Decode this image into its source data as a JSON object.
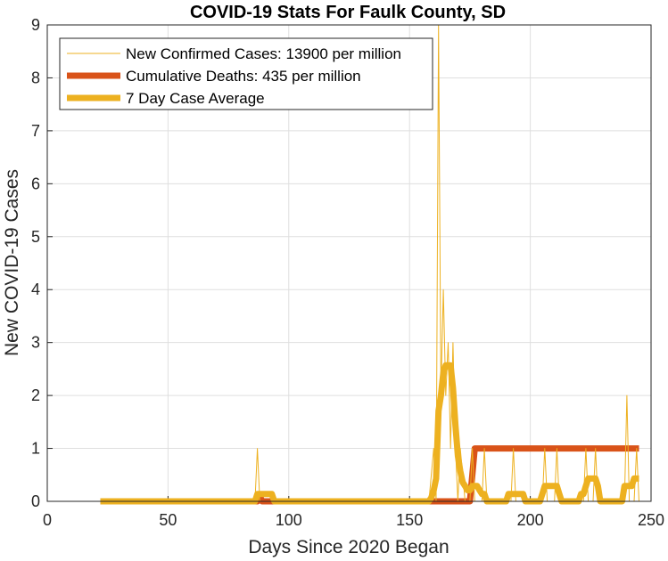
{
  "chart_data": {
    "type": "line",
    "title": "COVID-19 Stats For Faulk County, SD",
    "xlabel": "Days Since 2020 Began",
    "ylabel": "New COVID-19 Cases",
    "xlim": [
      0,
      250
    ],
    "ylim": [
      0,
      9
    ],
    "xticks": [
      "0",
      "50",
      "100",
      "150",
      "200",
      "250"
    ],
    "yticks": [
      "0",
      "1",
      "2",
      "3",
      "4",
      "5",
      "6",
      "7",
      "8",
      "9"
    ],
    "grid": true,
    "legend_position": "top-left",
    "series": [
      {
        "name": "New Confirmed Cases: 13900 per million",
        "color": "#EDB120",
        "style": "thin",
        "points": [
          [
            22,
            0
          ],
          [
            86,
            0
          ],
          [
            87,
            1
          ],
          [
            88,
            0
          ],
          [
            158,
            0
          ],
          [
            159,
            0.5
          ],
          [
            160,
            1
          ],
          [
            161,
            0
          ],
          [
            162,
            9
          ],
          [
            163,
            2
          ],
          [
            164,
            4
          ],
          [
            165,
            2
          ],
          [
            166,
            3
          ],
          [
            167,
            1
          ],
          [
            168,
            3
          ],
          [
            169,
            1
          ],
          [
            170,
            0
          ],
          [
            171,
            1
          ],
          [
            172,
            0.5
          ],
          [
            173,
            0
          ],
          [
            174,
            0
          ],
          [
            175,
            0
          ],
          [
            176,
            1
          ],
          [
            177,
            0
          ],
          [
            178,
            0
          ],
          [
            180,
            0
          ],
          [
            181,
            1
          ],
          [
            182,
            0
          ],
          [
            192,
            0
          ],
          [
            193,
            1
          ],
          [
            194,
            0
          ],
          [
            205,
            0
          ],
          [
            206,
            1
          ],
          [
            207,
            0
          ],
          [
            210,
            0
          ],
          [
            211,
            1
          ],
          [
            212,
            0
          ],
          [
            222,
            0
          ],
          [
            223,
            1
          ],
          [
            224,
            0
          ],
          [
            226,
            0
          ],
          [
            227,
            1
          ],
          [
            228,
            0
          ],
          [
            239,
            0
          ],
          [
            240,
            2
          ],
          [
            241,
            0
          ],
          [
            243,
            0
          ],
          [
            244,
            1
          ],
          [
            245,
            0
          ]
        ]
      },
      {
        "name": "Cumulative Deaths: 435 per million",
        "color": "#D95319",
        "style": "thick",
        "points": [
          [
            22,
            0
          ],
          [
            87,
            0
          ],
          [
            88,
            0.1
          ],
          [
            89,
            0
          ],
          [
            175,
            0
          ],
          [
            177,
            1
          ],
          [
            245,
            1
          ]
        ]
      },
      {
        "name": "7 Day Case Average",
        "color": "#EDB120",
        "style": "thick",
        "points": [
          [
            22,
            0
          ],
          [
            86,
            0
          ],
          [
            87,
            0.14
          ],
          [
            93,
            0.14
          ],
          [
            94,
            0
          ],
          [
            158,
            0
          ],
          [
            159,
            0.07
          ],
          [
            160,
            0.21
          ],
          [
            161,
            0.43
          ],
          [
            162,
            1.71
          ],
          [
            163,
            2.0
          ],
          [
            164,
            2.43
          ],
          [
            165,
            2.57
          ],
          [
            166,
            2.57
          ],
          [
            167,
            2.57
          ],
          [
            168,
            2.14
          ],
          [
            169,
            1.43
          ],
          [
            170,
            0.86
          ],
          [
            171,
            0.57
          ],
          [
            172,
            0.36
          ],
          [
            173,
            0.29
          ],
          [
            174,
            0.21
          ],
          [
            175,
            0.21
          ],
          [
            176,
            0.29
          ],
          [
            177,
            0.29
          ],
          [
            178,
            0.29
          ],
          [
            179,
            0.21
          ],
          [
            180,
            0.14
          ],
          [
            181,
            0.14
          ],
          [
            182,
            0.0
          ],
          [
            190,
            0
          ],
          [
            191,
            0.14
          ],
          [
            197,
            0.14
          ],
          [
            198,
            0
          ],
          [
            204,
            0
          ],
          [
            205,
            0.14
          ],
          [
            206,
            0.29
          ],
          [
            211,
            0.29
          ],
          [
            212,
            0.14
          ],
          [
            213,
            0
          ],
          [
            220,
            0
          ],
          [
            221,
            0.14
          ],
          [
            222,
            0.14
          ],
          [
            223,
            0.29
          ],
          [
            224,
            0.43
          ],
          [
            227,
            0.43
          ],
          [
            228,
            0.29
          ],
          [
            229,
            0
          ],
          [
            238,
            0
          ],
          [
            239,
            0.29
          ],
          [
            242,
            0.29
          ],
          [
            243,
            0.43
          ],
          [
            245,
            0.43
          ]
        ]
      }
    ]
  }
}
